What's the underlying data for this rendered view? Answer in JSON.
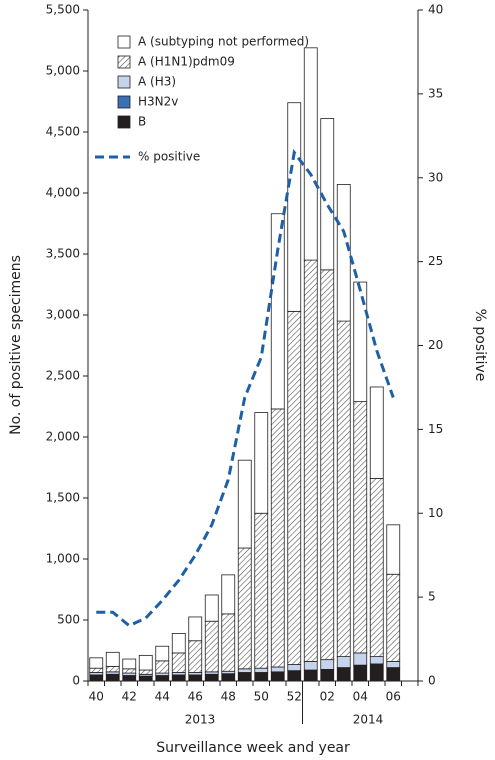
{
  "chart_data": {
    "type": "bar",
    "x_label": "Surveillance week and year",
    "y_label": "No. of positive specimens",
    "y2_label": "% positive",
    "annotations": [
      "2013",
      "2014"
    ],
    "categories": [
      "40",
      null,
      "42",
      null,
      "44",
      null,
      "46",
      null,
      "48",
      null,
      "50",
      null,
      "52",
      null,
      "02",
      null,
      "04",
      null,
      "06"
    ],
    "series": [
      {
        "name": "B",
        "color": "#231f20",
        "values": [
          50,
          55,
          45,
          40,
          45,
          50,
          50,
          55,
          60,
          70,
          70,
          75,
          85,
          90,
          95,
          110,
          130,
          140,
          110
        ]
      },
      {
        "name": "H3N2v",
        "color": "#3b6fb6",
        "values": [
          0,
          0,
          0,
          0,
          0,
          0,
          0,
          0,
          0,
          0,
          0,
          0,
          0,
          0,
          0,
          0,
          0,
          0,
          0
        ]
      },
      {
        "name": "A (H3)",
        "color": "#c5d3ec",
        "values": [
          20,
          20,
          20,
          15,
          20,
          20,
          20,
          20,
          20,
          30,
          35,
          40,
          50,
          70,
          80,
          90,
          100,
          60,
          50
        ]
      },
      {
        "name": "A (H1N1)pdm09",
        "color": "#7f7f7f",
        "pattern": "hatch",
        "values": [
          35,
          45,
          35,
          35,
          100,
          160,
          260,
          415,
          470,
          990,
          1270,
          2115,
          2895,
          3290,
          3195,
          2750,
          2060,
          1460,
          715
        ]
      },
      {
        "name": "A (subtyping not performed)",
        "color": "#ffffff",
        "values": [
          85,
          115,
          80,
          120,
          120,
          160,
          195,
          215,
          320,
          720,
          825,
          1600,
          1710,
          1740,
          1240,
          1120,
          980,
          750,
          405
        ]
      },
      {
        "name": "% positive",
        "type": "line",
        "axis": "y2",
        "color": "#1f5fa6",
        "values": [
          4.1,
          4.1,
          3.3,
          3.75,
          4.8,
          6.0,
          7.5,
          9.3,
          12.0,
          16.9,
          19.3,
          25.7,
          31.5,
          30.2,
          28.4,
          26.8,
          23.3,
          19.7,
          16.9
        ]
      }
    ],
    "ylim": [
      0,
      5500
    ],
    "yticks": [
      0,
      500,
      {
        "value": 1000,
        "label": "1,000"
      },
      {
        "value": 1500,
        "label": "1,500"
      },
      {
        "value": 2000,
        "label": "2,000"
      },
      {
        "value": 2500,
        "label": "2,500"
      },
      {
        "value": 3000,
        "label": "3,000"
      },
      {
        "value": 3500,
        "label": "3,500"
      },
      {
        "value": 4000,
        "label": "4,000"
      },
      {
        "value": 4500,
        "label": "4,500"
      },
      {
        "value": 5000,
        "label": "5,000"
      },
      {
        "value": 5500,
        "label": "5,500"
      }
    ],
    "y2lim": [
      0,
      40
    ],
    "y2ticks": [
      0,
      5,
      10,
      15,
      20,
      25,
      30,
      35,
      40
    ]
  }
}
